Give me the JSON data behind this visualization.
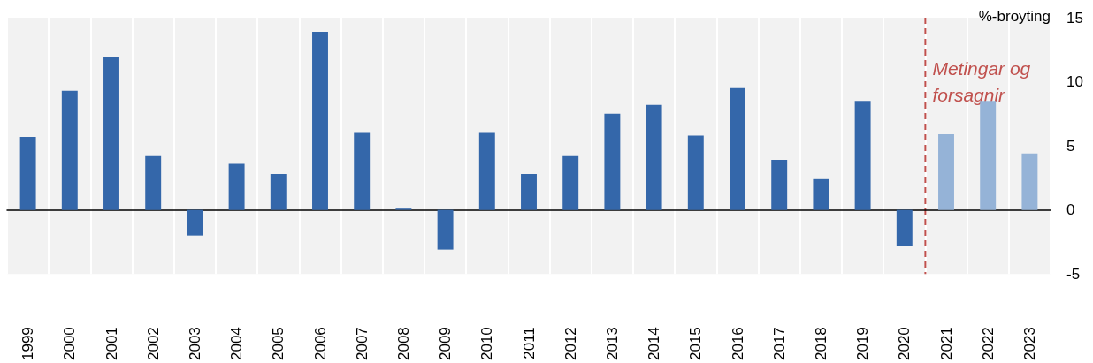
{
  "chart_data": {
    "type": "bar",
    "ylabel": "%-broyting",
    "categories": [
      "1999",
      "2000",
      "2001",
      "2002",
      "2003",
      "2004",
      "2005",
      "2006",
      "2007",
      "2008",
      "2009",
      "2010",
      "2011",
      "2012",
      "2013",
      "2014",
      "2015",
      "2016",
      "2017",
      "2018",
      "2019",
      "2020",
      "2021",
      "2022",
      "2023"
    ],
    "values": [
      5.7,
      9.3,
      11.9,
      4.2,
      -2.0,
      3.6,
      2.8,
      13.9,
      6.0,
      0.1,
      -3.1,
      6.0,
      2.8,
      4.2,
      7.5,
      8.2,
      5.8,
      9.5,
      3.9,
      2.4,
      8.5,
      -2.8,
      5.9,
      8.5,
      4.4
    ],
    "colors": [
      "#3467aa",
      "#3467aa",
      "#3467aa",
      "#3467aa",
      "#3467aa",
      "#3467aa",
      "#3467aa",
      "#3467aa",
      "#3467aa",
      "#3467aa",
      "#3467aa",
      "#3467aa",
      "#3467aa",
      "#3467aa",
      "#3467aa",
      "#3467aa",
      "#3467aa",
      "#3467aa",
      "#3467aa",
      "#3467aa",
      "#3467aa",
      "#3467aa",
      "#95b3d7",
      "#95b3d7",
      "#95b3d7"
    ],
    "ylim": [
      -5,
      15
    ],
    "yticks": [
      -5,
      0,
      5,
      10,
      15
    ],
    "grid": "x",
    "ref_lines": [
      {
        "axis": "x",
        "value": "2021",
        "label": "Metingar og forsagnir",
        "color": "#c0504d",
        "line_style": "dashed"
      }
    ]
  }
}
